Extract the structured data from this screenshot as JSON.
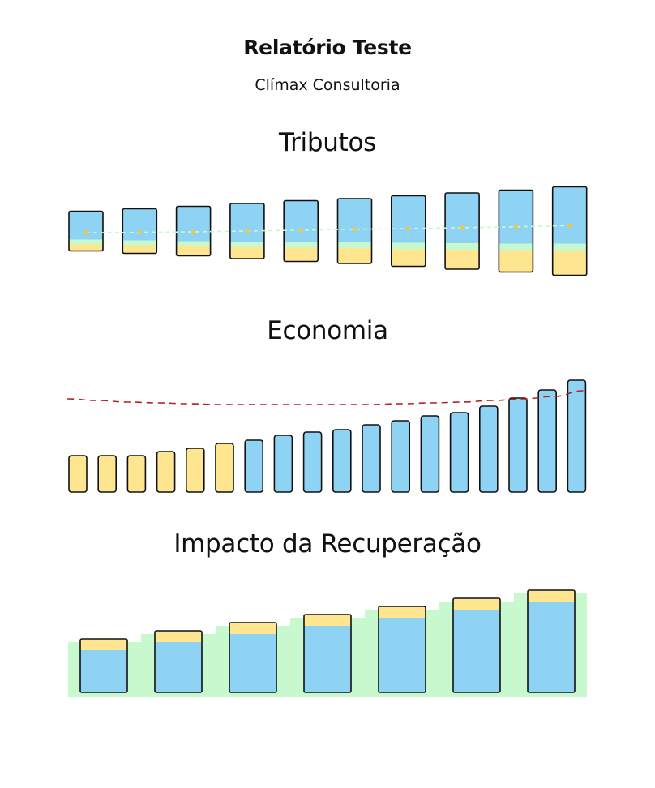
{
  "report": {
    "title": "Relatório Teste",
    "company": "Clímax Consultoria"
  },
  "colors": {
    "blue": "#8fd3f4",
    "yellow": "#fde68f",
    "green": "#c7f8ce",
    "outline": "#111111",
    "dot": "#f5c53b",
    "dashed_green": "#c7f8ce",
    "dashed_red": "#b22222"
  },
  "chart_data": [
    {
      "type": "bar",
      "title": "Tributos",
      "stacked": true,
      "bars": [
        {
          "blue": 35,
          "green": 6,
          "yellow": 8,
          "marker": 33
        },
        {
          "blue": 39,
          "green": 6,
          "yellow": 10,
          "marker": 34
        },
        {
          "blue": 43,
          "green": 6,
          "yellow": 12,
          "marker": 35
        },
        {
          "blue": 47,
          "green": 7,
          "yellow": 14,
          "marker": 36
        },
        {
          "blue": 51,
          "green": 7,
          "yellow": 17,
          "marker": 37
        },
        {
          "blue": 54,
          "green": 7,
          "yellow": 19,
          "marker": 36
        },
        {
          "blue": 58,
          "green": 8,
          "yellow": 21,
          "marker": 38
        },
        {
          "blue": 62,
          "green": 8,
          "yellow": 24,
          "marker": 39
        },
        {
          "blue": 66,
          "green": 8,
          "yellow": 27,
          "marker": 40
        },
        {
          "blue": 70,
          "green": 9,
          "yellow": 30,
          "marker": 41
        }
      ]
    },
    {
      "type": "bar",
      "title": "Economia",
      "values": [
        45,
        45,
        45,
        50,
        54,
        60,
        64,
        70,
        74,
        77,
        83,
        88,
        94,
        98,
        106,
        116,
        126,
        138
      ],
      "colors": [
        "yellow",
        "yellow",
        "yellow",
        "yellow",
        "yellow",
        "yellow",
        "blue",
        "blue",
        "blue",
        "blue",
        "blue",
        "blue",
        "blue",
        "blue",
        "blue",
        "blue",
        "blue",
        "blue"
      ],
      "line": [
        115,
        113,
        111,
        110,
        109,
        108,
        108,
        108,
        108,
        108,
        108,
        109,
        110,
        111,
        113,
        115,
        118,
        125
      ]
    },
    {
      "type": "bar",
      "title": "Impacto da Recuperação",
      "stacked": true,
      "bars": [
        {
          "blue": 52,
          "yellow": 14,
          "area": 68
        },
        {
          "blue": 62,
          "yellow": 14,
          "area": 78
        },
        {
          "blue": 72,
          "yellow": 14,
          "area": 88
        },
        {
          "blue": 82,
          "yellow": 14,
          "area": 98
        },
        {
          "blue": 92,
          "yellow": 14,
          "area": 108
        },
        {
          "blue": 102,
          "yellow": 14,
          "area": 118
        },
        {
          "blue": 112,
          "yellow": 14,
          "area": 128
        }
      ]
    }
  ]
}
